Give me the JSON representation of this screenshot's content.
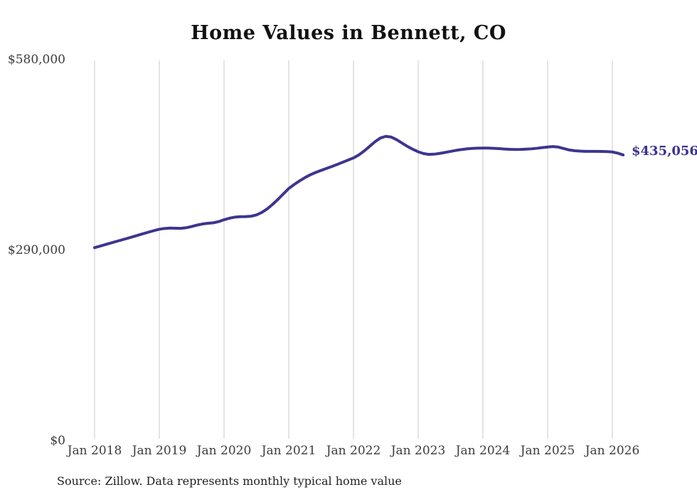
{
  "title": "Home Values in Bennett, CO",
  "source_note": "Source: Zillow. Data represents monthly typical home value",
  "end_label": "$435,056",
  "colors": {
    "line": "#3d358f",
    "end_label": "#3b3291",
    "grid": "#c9c9c9",
    "axis_text": "#3c3c3c",
    "title_text": "#111111",
    "source_text": "#222222",
    "background": "#ffffff"
  },
  "chart_data": {
    "type": "line",
    "title": "Home Values in Bennett, CO",
    "xlabel": "",
    "ylabel": "",
    "unit": "USD",
    "interval": "monthly",
    "x_start": "2018-01",
    "x_end": "2026-03",
    "ylim": [
      0,
      580000
    ],
    "grid": "vertical-only",
    "legend": "none",
    "last_value_label": "$435,056",
    "last_value": 435056,
    "y_ticks": [
      {
        "label": "$580,000",
        "value": 580000
      },
      {
        "label": "$290,000",
        "value": 290000
      },
      {
        "label": "$0",
        "value": 0
      }
    ],
    "x_tick_labels": [
      "Jan 2018",
      "Jan 2019",
      "Jan 2020",
      "Jan 2021",
      "Jan 2022",
      "Jan 2023",
      "Jan 2024",
      "Jan 2025",
      "Jan 2026"
    ],
    "series": [
      {
        "name": "Typical home value",
        "values": [
          294000,
          296300,
          298700,
          301000,
          303400,
          305700,
          308000,
          310400,
          312800,
          315200,
          317600,
          319900,
          322000,
          323200,
          323800,
          323600,
          323400,
          324300,
          326200,
          328300,
          330000,
          331100,
          331800,
          333600,
          336500,
          338800,
          340400,
          341100,
          341200,
          341800,
          343800,
          347600,
          353000,
          359800,
          367500,
          375800,
          384000,
          390100,
          395600,
          400600,
          404900,
          408500,
          411600,
          414600,
          417600,
          420700,
          424000,
          427300,
          430600,
          435200,
          441200,
          448200,
          455300,
          460900,
          463400,
          462300,
          458300,
          453200,
          448100,
          443700,
          439900,
          437200,
          435900,
          436300,
          437400,
          438900,
          440500,
          442000,
          443300,
          444300,
          445000,
          445400,
          445600,
          445500,
          445200,
          444700,
          444100,
          443600,
          443400,
          443500,
          443900,
          444400,
          445200,
          446200,
          447200,
          447900,
          447000,
          444800,
          442700,
          441500,
          440900,
          440600,
          440500,
          440500,
          440400,
          440200,
          439600,
          437800,
          435056
        ]
      }
    ]
  }
}
